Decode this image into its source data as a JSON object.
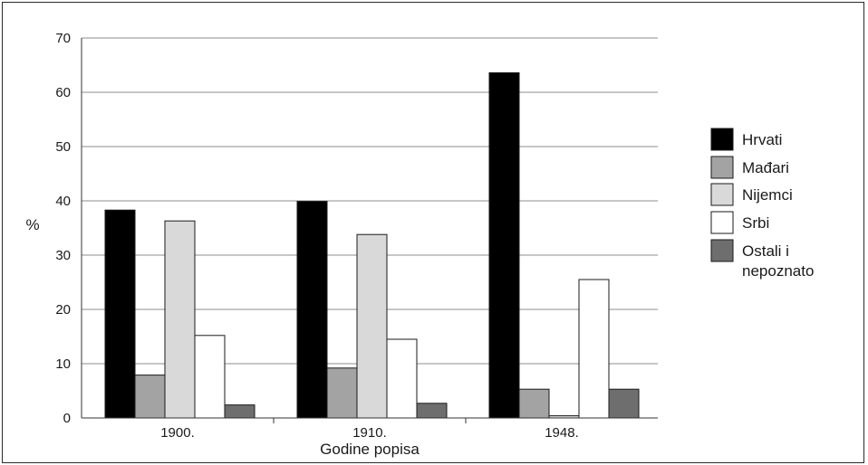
{
  "chart_data": {
    "type": "bar",
    "title": "",
    "xlabel": "Godine popisa",
    "ylabel": "%",
    "ylim": [
      0,
      70
    ],
    "yticks": [
      0,
      10,
      20,
      30,
      40,
      50,
      60,
      70
    ],
    "grid": true,
    "legend_position": "right",
    "categories": [
      "1900.",
      "1910.",
      "1948."
    ],
    "series": [
      {
        "name": "Hrvati",
        "values": [
          38.3,
          39.9,
          63.6
        ],
        "color": "#000000"
      },
      {
        "name": "Mađari",
        "values": [
          7.9,
          9.2,
          5.3
        ],
        "color": "#a3a3a3"
      },
      {
        "name": "Nijemci",
        "values": [
          36.3,
          33.8,
          0.4
        ],
        "color": "#d9d9d9"
      },
      {
        "name": "Srbi",
        "values": [
          15.2,
          14.5,
          25.5
        ],
        "color": "#ffffff"
      },
      {
        "name": "Ostali i nepoznato",
        "legend_lines": [
          "Ostali i",
          "nepoznato"
        ],
        "values": [
          2.4,
          2.7,
          5.3
        ],
        "color": "#6e6e6e"
      }
    ]
  }
}
